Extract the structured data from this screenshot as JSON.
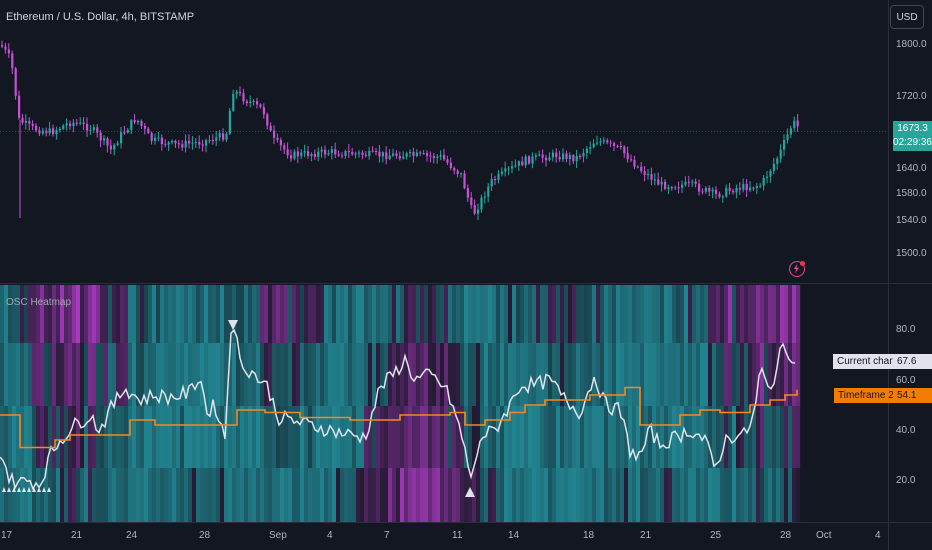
{
  "header": {
    "title": "Ethereum / U.S. Dollar, 4h, BITSTAMP",
    "currency_button": "USD"
  },
  "price_panel": {
    "y_ticks": [
      "1800.0",
      "1720.0",
      "1640.0",
      "1580.0",
      "1540.0",
      "1500.0"
    ],
    "last_price": "1673.3",
    "countdown": "02:29:36",
    "up_color": "#26a69a",
    "down_color": "#c752d6"
  },
  "indicator": {
    "title": "OSC Heatmap",
    "y_ticks": [
      "80.0",
      "60.0",
      "40.0",
      "20.0"
    ],
    "legend": [
      {
        "label": "Current chart",
        "value": "67.6",
        "color": "#e0e3eb"
      },
      {
        "label": "Timeframe 2",
        "value": "54.1",
        "color": "#f57c00"
      }
    ],
    "colors": {
      "osc_line": "#e0e3eb",
      "tf2_line": "#f5891f",
      "cool": "#26a9b5",
      "hot": "#b23cc9"
    }
  },
  "x_axis": {
    "labels": [
      "17",
      "21",
      "24",
      "28",
      "Sep",
      "4",
      "7",
      "11",
      "14",
      "18",
      "21",
      "25",
      "28",
      "Oct",
      "4"
    ]
  },
  "icons": {
    "alert": "lightning-bolt-icon",
    "marker_top": "triangle-down-icon",
    "marker_bottom": "triangle-up-icon"
  }
}
